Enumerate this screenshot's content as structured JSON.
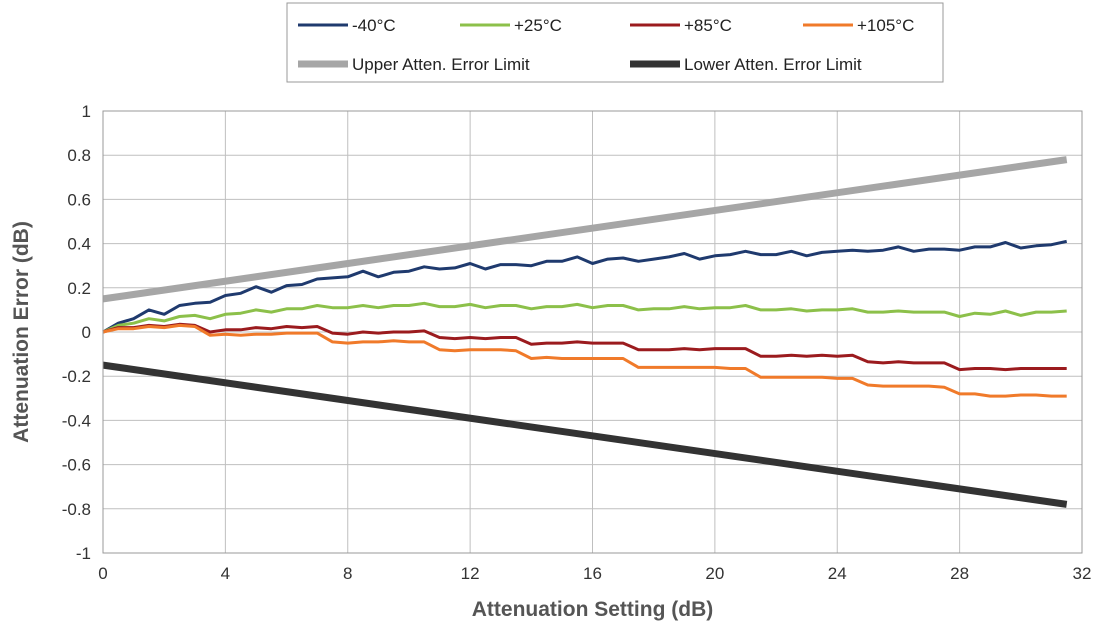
{
  "chart_data": {
    "type": "line",
    "xlabel": "Attenuation Setting (dB)",
    "ylabel": "Attenuation Error (dB)",
    "xlim": [
      0,
      32
    ],
    "ylim": [
      -1,
      1
    ],
    "x_ticks": [
      "0",
      "4",
      "8",
      "12",
      "16",
      "20",
      "24",
      "28",
      "32"
    ],
    "y_ticks": [
      "1",
      "0.8",
      "0.6",
      "0.4",
      "0.2",
      "0",
      "-0.2",
      "-0.4",
      "-0.6",
      "-0.8",
      "-1"
    ],
    "x_tick_values": [
      0,
      4,
      8,
      12,
      16,
      20,
      24,
      28,
      32
    ],
    "y_tick_values": [
      1,
      0.8,
      0.6,
      0.4,
      0.2,
      0,
      -0.2,
      -0.4,
      -0.6,
      -0.8,
      -1
    ],
    "grid": true,
    "legend_position": "top",
    "series": [
      {
        "name": "-40°C",
        "color": "#1f3a6e",
        "x": [
          0,
          0.5,
          1,
          1.5,
          2,
          2.5,
          3,
          3.5,
          4,
          4.5,
          5,
          5.5,
          6,
          6.5,
          7,
          7.5,
          8,
          8.5,
          9,
          9.5,
          10,
          10.5,
          11,
          11.5,
          12,
          12.5,
          13,
          13.5,
          14,
          14.5,
          15,
          15.5,
          16,
          16.5,
          17,
          17.5,
          18,
          18.5,
          19,
          19.5,
          20,
          20.5,
          21,
          21.5,
          22,
          22.5,
          23,
          23.5,
          24,
          24.5,
          25,
          25.5,
          26,
          26.5,
          27,
          27.5,
          28,
          28.5,
          29,
          29.5,
          30,
          30.5,
          31,
          31.5
        ],
        "values": [
          0,
          0.04,
          0.06,
          0.1,
          0.08,
          0.12,
          0.13,
          0.135,
          0.165,
          0.175,
          0.205,
          0.18,
          0.21,
          0.215,
          0.24,
          0.245,
          0.25,
          0.275,
          0.25,
          0.27,
          0.275,
          0.295,
          0.285,
          0.29,
          0.31,
          0.285,
          0.305,
          0.305,
          0.3,
          0.32,
          0.32,
          0.34,
          0.31,
          0.33,
          0.335,
          0.32,
          0.33,
          0.34,
          0.355,
          0.33,
          0.345,
          0.35,
          0.365,
          0.35,
          0.35,
          0.365,
          0.345,
          0.36,
          0.365,
          0.37,
          0.365,
          0.37,
          0.385,
          0.365,
          0.375,
          0.375,
          0.37,
          0.385,
          0.385,
          0.405,
          0.38,
          0.39,
          0.395,
          0.41
        ]
      },
      {
        "name": "+25°C",
        "color": "#8cc04a",
        "x": [
          0,
          0.5,
          1,
          1.5,
          2,
          2.5,
          3,
          3.5,
          4,
          4.5,
          5,
          5.5,
          6,
          6.5,
          7,
          7.5,
          8,
          8.5,
          9,
          9.5,
          10,
          10.5,
          11,
          11.5,
          12,
          12.5,
          13,
          13.5,
          14,
          14.5,
          15,
          15.5,
          16,
          16.5,
          17,
          17.5,
          18,
          18.5,
          19,
          19.5,
          20,
          20.5,
          21,
          21.5,
          22,
          22.5,
          23,
          23.5,
          24,
          24.5,
          25,
          25.5,
          26,
          26.5,
          27,
          27.5,
          28,
          28.5,
          29,
          29.5,
          30,
          30.5,
          31,
          31.5
        ],
        "values": [
          0,
          0.03,
          0.04,
          0.06,
          0.05,
          0.07,
          0.075,
          0.06,
          0.08,
          0.085,
          0.1,
          0.09,
          0.105,
          0.105,
          0.12,
          0.11,
          0.11,
          0.12,
          0.11,
          0.12,
          0.12,
          0.13,
          0.115,
          0.115,
          0.125,
          0.11,
          0.12,
          0.12,
          0.105,
          0.115,
          0.115,
          0.125,
          0.11,
          0.12,
          0.12,
          0.1,
          0.105,
          0.105,
          0.115,
          0.105,
          0.11,
          0.11,
          0.12,
          0.1,
          0.1,
          0.105,
          0.095,
          0.1,
          0.1,
          0.105,
          0.09,
          0.09,
          0.095,
          0.09,
          0.09,
          0.09,
          0.07,
          0.085,
          0.08,
          0.095,
          0.075,
          0.09,
          0.09,
          0.095
        ]
      },
      {
        "name": "+85°C",
        "color": "#9b1b1e",
        "x": [
          0,
          0.5,
          1,
          1.5,
          2,
          2.5,
          3,
          3.5,
          4,
          4.5,
          5,
          5.5,
          6,
          6.5,
          7,
          7.5,
          8,
          8.5,
          9,
          9.5,
          10,
          10.5,
          11,
          11.5,
          12,
          12.5,
          13,
          13.5,
          14,
          14.5,
          15,
          15.5,
          16,
          16.5,
          17,
          17.5,
          18,
          18.5,
          19,
          19.5,
          20,
          20.5,
          21,
          21.5,
          22,
          22.5,
          23,
          23.5,
          24,
          24.5,
          25,
          25.5,
          26,
          26.5,
          27,
          27.5,
          28,
          28.5,
          29,
          29.5,
          30,
          30.5,
          31,
          31.5
        ],
        "values": [
          0,
          0.02,
          0.02,
          0.03,
          0.025,
          0.035,
          0.03,
          0,
          0.01,
          0.01,
          0.02,
          0.015,
          0.025,
          0.02,
          0.025,
          -0.005,
          -0.01,
          0,
          -0.005,
          0,
          0,
          0.005,
          -0.025,
          -0.03,
          -0.025,
          -0.03,
          -0.025,
          -0.025,
          -0.055,
          -0.05,
          -0.05,
          -0.045,
          -0.05,
          -0.05,
          -0.05,
          -0.08,
          -0.08,
          -0.08,
          -0.075,
          -0.08,
          -0.075,
          -0.075,
          -0.075,
          -0.11,
          -0.11,
          -0.105,
          -0.11,
          -0.105,
          -0.11,
          -0.105,
          -0.135,
          -0.14,
          -0.135,
          -0.14,
          -0.14,
          -0.14,
          -0.17,
          -0.165,
          -0.165,
          -0.17,
          -0.165,
          -0.165,
          -0.165,
          -0.165
        ]
      },
      {
        "name": "+105°C",
        "color": "#f07a2a",
        "x": [
          0,
          0.5,
          1,
          1.5,
          2,
          2.5,
          3,
          3.5,
          4,
          4.5,
          5,
          5.5,
          6,
          6.5,
          7,
          7.5,
          8,
          8.5,
          9,
          9.5,
          10,
          10.5,
          11,
          11.5,
          12,
          12.5,
          13,
          13.5,
          14,
          14.5,
          15,
          15.5,
          16,
          16.5,
          17,
          17.5,
          18,
          18.5,
          19,
          19.5,
          20,
          20.5,
          21,
          21.5,
          22,
          22.5,
          23,
          23.5,
          24,
          24.5,
          25,
          25.5,
          26,
          26.5,
          27,
          27.5,
          28,
          28.5,
          29,
          29.5,
          30,
          30.5,
          31,
          31.5
        ],
        "values": [
          0,
          0.015,
          0.015,
          0.025,
          0.02,
          0.03,
          0.025,
          -0.015,
          -0.01,
          -0.015,
          -0.01,
          -0.01,
          -0.005,
          -0.005,
          -0.005,
          -0.045,
          -0.05,
          -0.045,
          -0.045,
          -0.04,
          -0.045,
          -0.045,
          -0.08,
          -0.085,
          -0.08,
          -0.08,
          -0.08,
          -0.085,
          -0.12,
          -0.115,
          -0.12,
          -0.12,
          -0.12,
          -0.12,
          -0.12,
          -0.16,
          -0.16,
          -0.16,
          -0.16,
          -0.16,
          -0.16,
          -0.165,
          -0.165,
          -0.205,
          -0.205,
          -0.205,
          -0.205,
          -0.205,
          -0.21,
          -0.21,
          -0.24,
          -0.245,
          -0.245,
          -0.245,
          -0.245,
          -0.25,
          -0.28,
          -0.28,
          -0.29,
          -0.29,
          -0.285,
          -0.285,
          -0.29,
          -0.29
        ]
      },
      {
        "name": "Upper Atten. Error Limit",
        "color": "#a6a6a6",
        "x": [
          0,
          31.5
        ],
        "values": [
          0.15,
          0.78
        ]
      },
      {
        "name": "Lower Atten. Error Limit",
        "color": "#333333",
        "x": [
          0,
          31.5
        ],
        "values": [
          -0.15,
          -0.78
        ]
      }
    ]
  }
}
